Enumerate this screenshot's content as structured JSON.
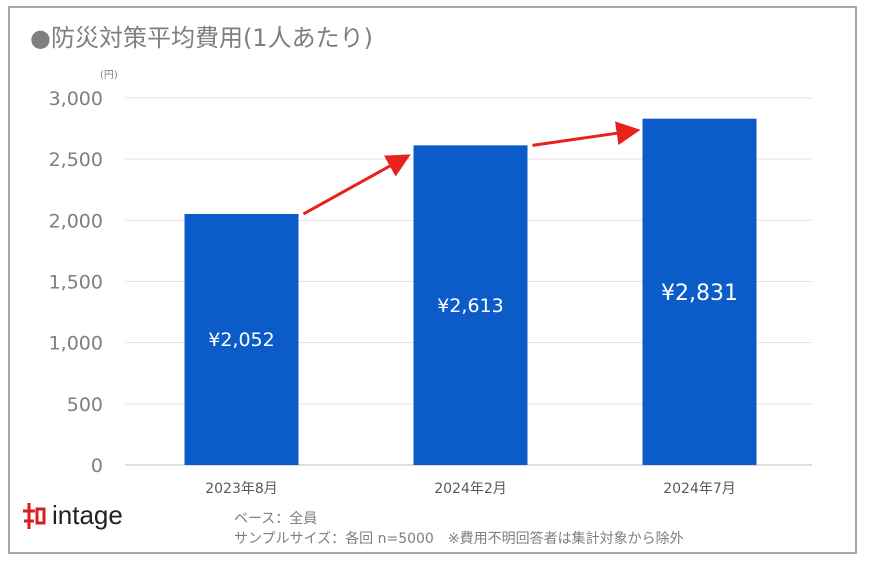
{
  "chart_data": {
    "type": "bar",
    "title": "●防災対策平均費用(1人あたり)",
    "unit_label": "(円)",
    "categories": [
      "2023年8月",
      "2024年2月",
      "2024年7月"
    ],
    "values": [
      2052,
      2613,
      2831
    ],
    "data_labels": [
      "¥2,052",
      "¥2,613",
      "¥2,831"
    ],
    "yticks": [
      "0",
      "500",
      "1,000",
      "1,500",
      "2,000",
      "2,500",
      "3,000"
    ],
    "ylim": [
      0,
      3000
    ],
    "grid": true,
    "bar_color": "#0b5cc9",
    "arrow_color": "#e8221b"
  },
  "footer": {
    "logo": "intage",
    "base": "ベース：全員",
    "sample": "サンプルサイズ：各回 n=5000　※費用不明回答者は集計対象から除外"
  }
}
